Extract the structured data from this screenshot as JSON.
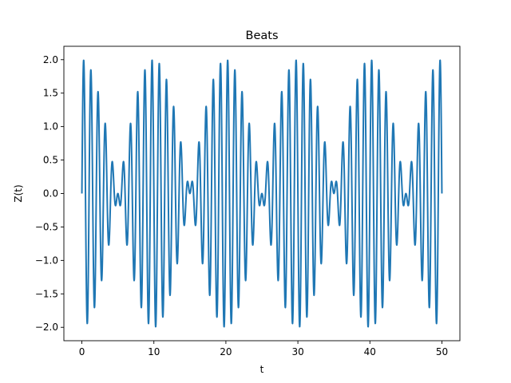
{
  "chart_data": {
    "type": "line",
    "title": "Beats",
    "xlabel": "t",
    "ylabel": "Z(t)",
    "xlim": [
      -2.5,
      52.5
    ],
    "ylim": [
      -2.2,
      2.2
    ],
    "x_ticks": [
      0,
      10,
      20,
      30,
      40,
      50
    ],
    "y_ticks": [
      -2.0,
      -1.5,
      -1.0,
      -0.5,
      0.0,
      0.5,
      1.0,
      1.5,
      2.0
    ],
    "x_tick_labels": [
      "0",
      "10",
      "20",
      "30",
      "40",
      "50"
    ],
    "y_tick_labels": [
      "−2.0",
      "−1.5",
      "−1.0",
      "−0.5",
      "0.0",
      "0.5",
      "1.0",
      "1.5",
      "2.0"
    ],
    "grid": false,
    "series": [
      {
        "color": "#1f77b4",
        "function": "Z(t) = sin(2π·1.05·t) + sin(2π·0.95·t)",
        "x_range": [
          0,
          50
        ],
        "samples": 2501
      }
    ]
  }
}
